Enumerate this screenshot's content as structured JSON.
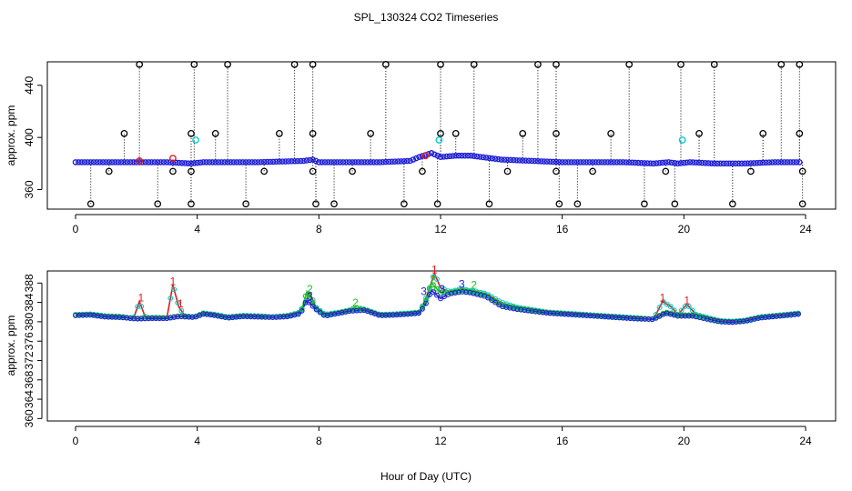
{
  "figure": {
    "title": "SPL_130324  CO2 Timeseries",
    "xlabel": "Hour of Day (UTC)"
  },
  "colors": {
    "outlier": "#000000",
    "main": "#1f1fd6",
    "series1": "#e31a1c",
    "series2": "#1fbf1f",
    "series3": "#1f1fd6",
    "cyan": "#00cccc"
  },
  "chart_data": [
    {
      "type": "scatter",
      "name": "top-panel",
      "ylabel": "approx. ppm",
      "xlim": [
        0,
        24
      ],
      "ylim": [
        345,
        458
      ],
      "xticks": [
        0,
        4,
        8,
        12,
        16,
        20,
        24
      ],
      "yticks": [
        360,
        400,
        440
      ],
      "main_series": [
        [
          0,
          381
        ],
        [
          1,
          381
        ],
        [
          2,
          381
        ],
        [
          3,
          381
        ],
        [
          3.8,
          380
        ],
        [
          4.2,
          381
        ],
        [
          6,
          381
        ],
        [
          7.5,
          382
        ],
        [
          7.8,
          383
        ],
        [
          8,
          381
        ],
        [
          9,
          381
        ],
        [
          10,
          381
        ],
        [
          11,
          382
        ],
        [
          11.3,
          385
        ],
        [
          11.7,
          388
        ],
        [
          12,
          385
        ],
        [
          12.5,
          386
        ],
        [
          13,
          386
        ],
        [
          14,
          383
        ],
        [
          15,
          382
        ],
        [
          16,
          381
        ],
        [
          17,
          381
        ],
        [
          18,
          381
        ],
        [
          19,
          380
        ],
        [
          19.5,
          381
        ],
        [
          19.8,
          380
        ],
        [
          20.2,
          381
        ],
        [
          21,
          380
        ],
        [
          22,
          380
        ],
        [
          23,
          381
        ],
        [
          23.8,
          381
        ]
      ],
      "outliers_high": [
        2.1,
        3.9,
        5.0,
        7.2,
        7.8,
        10.2,
        12.0,
        13.1,
        15.2,
        15.8,
        18.2,
        19.9,
        21.0,
        23.2,
        23.8
      ],
      "outliers_low": [
        0.5,
        2.7,
        3.8,
        5.6,
        7.9,
        8.5,
        10.8,
        11.9,
        13.6,
        15.9,
        16.5,
        18.7,
        19.7,
        21.6,
        23.9
      ],
      "outliers_mid": [
        1.6,
        3.8,
        4.6,
        6.7,
        7.8,
        9.7,
        12.0,
        12.5,
        14.7,
        15.8,
        17.6,
        20.5,
        22.6,
        23.8
      ],
      "outliers_near_low": [
        1.1,
        3.2,
        3.8,
        6.2,
        7.8,
        9.1,
        11.4,
        14.2,
        15.8,
        17.0,
        19.4,
        22.2,
        23.9
      ],
      "cyan_points": [
        [
          3.95,
          398
        ],
        [
          11.95,
          398
        ],
        [
          19.95,
          398
        ]
      ],
      "red_points": [
        [
          2.1,
          382
        ],
        [
          3.2,
          384
        ],
        [
          11.5,
          386
        ]
      ]
    },
    {
      "type": "line",
      "name": "bottom-panel",
      "ylabel": "approx. ppm",
      "xlim": [
        0,
        24
      ],
      "ylim": [
        359.5,
        390.5
      ],
      "xticks": [
        0,
        4,
        8,
        12,
        16,
        20,
        24
      ],
      "yticks": [
        360,
        364,
        368,
        372,
        376,
        380,
        384,
        388
      ],
      "series": [
        {
          "name": "1",
          "label": "1",
          "values": [
            [
              0,
              381.5
            ],
            [
              0.5,
              381.6
            ],
            [
              1,
              381.2
            ],
            [
              1.5,
              381.1
            ],
            [
              1.9,
              380.6
            ],
            [
              2.1,
              384.2
            ],
            [
              2.3,
              380.8
            ],
            [
              2.6,
              380.9
            ],
            [
              3.0,
              380.8
            ],
            [
              3.2,
              387.6
            ],
            [
              3.4,
              383.0
            ],
            [
              3.6,
              381.2
            ],
            [
              3.9,
              381.0
            ],
            [
              4.2,
              381.8
            ],
            [
              4.6,
              381.5
            ],
            [
              5.0,
              381.0
            ],
            [
              5.5,
              381.3
            ],
            [
              6.0,
              381.2
            ],
            [
              6.5,
              381.0
            ],
            [
              7.0,
              381.3
            ],
            [
              7.4,
              382.0
            ],
            [
              7.7,
              386.0
            ],
            [
              7.9,
              383.0
            ],
            [
              8.2,
              381.5
            ],
            [
              8.7,
              382.0
            ],
            [
              9.0,
              382.4
            ],
            [
              9.5,
              382.6
            ],
            [
              10.0,
              381.5
            ],
            [
              10.5,
              381.6
            ],
            [
              11.0,
              381.8
            ],
            [
              11.3,
              382.0
            ],
            [
              11.5,
              384.5
            ],
            [
              11.8,
              390.0
            ],
            [
              12.0,
              387.0
            ],
            [
              12.3,
              386.2
            ],
            [
              12.7,
              386.8
            ],
            [
              13.0,
              386.4
            ],
            [
              13.5,
              385.8
            ],
            [
              14.0,
              384.0
            ],
            [
              14.5,
              383.0
            ],
            [
              15.0,
              382.5
            ],
            [
              15.5,
              382.0
            ],
            [
              16.0,
              381.8
            ],
            [
              16.5,
              381.6
            ],
            [
              17.0,
              381.4
            ],
            [
              17.5,
              381.2
            ],
            [
              18.0,
              381.0
            ],
            [
              18.5,
              380.8
            ],
            [
              19.0,
              380.5
            ],
            [
              19.3,
              384.2
            ],
            [
              19.6,
              383.0
            ],
            [
              19.8,
              381.5
            ],
            [
              20.1,
              383.6
            ],
            [
              20.4,
              381.5
            ],
            [
              20.8,
              380.8
            ],
            [
              21.2,
              380.2
            ],
            [
              21.6,
              380.1
            ],
            [
              22.0,
              380.3
            ],
            [
              22.5,
              381.0
            ],
            [
              23.0,
              381.3
            ],
            [
              23.5,
              381.6
            ],
            [
              23.8,
              381.8
            ]
          ]
        },
        {
          "name": "2",
          "label": "2",
          "values": [
            [
              0,
              381.4
            ],
            [
              0.5,
              381.5
            ],
            [
              1,
              381.1
            ],
            [
              1.5,
              381.0
            ],
            [
              2.0,
              380.7
            ],
            [
              2.5,
              380.8
            ],
            [
              3.0,
              380.8
            ],
            [
              3.4,
              381.2
            ],
            [
              3.9,
              381.0
            ],
            [
              4.2,
              381.7
            ],
            [
              4.6,
              381.4
            ],
            [
              5.0,
              380.9
            ],
            [
              5.5,
              381.2
            ],
            [
              6.0,
              381.1
            ],
            [
              6.5,
              381.0
            ],
            [
              7.0,
              381.2
            ],
            [
              7.4,
              381.8
            ],
            [
              7.6,
              386.2
            ],
            [
              7.9,
              382.8
            ],
            [
              8.2,
              381.3
            ],
            [
              8.7,
              381.9
            ],
            [
              9.0,
              382.3
            ],
            [
              9.2,
              383.0
            ],
            [
              9.5,
              382.5
            ],
            [
              10.0,
              381.4
            ],
            [
              10.5,
              381.5
            ],
            [
              11.0,
              381.7
            ],
            [
              11.3,
              381.9
            ],
            [
              11.5,
              384.0
            ],
            [
              11.7,
              388.0
            ],
            [
              12.0,
              386.0
            ],
            [
              12.3,
              386.0
            ],
            [
              12.7,
              386.5
            ],
            [
              13.0,
              386.2
            ],
            [
              13.5,
              385.5
            ],
            [
              14.0,
              383.5
            ],
            [
              14.5,
              382.8
            ],
            [
              15.0,
              382.4
            ],
            [
              15.5,
              381.9
            ],
            [
              16.0,
              381.7
            ],
            [
              16.5,
              381.5
            ],
            [
              17.0,
              381.3
            ],
            [
              17.5,
              381.1
            ],
            [
              18.0,
              380.9
            ],
            [
              18.5,
              380.7
            ],
            [
              19.0,
              380.6
            ],
            [
              19.4,
              382.0
            ],
            [
              19.8,
              381.4
            ],
            [
              20.3,
              381.4
            ],
            [
              20.8,
              380.7
            ],
            [
              21.2,
              380.1
            ],
            [
              21.6,
              380.0
            ],
            [
              22.0,
              380.2
            ],
            [
              22.5,
              380.9
            ],
            [
              23.0,
              381.2
            ],
            [
              23.5,
              381.5
            ],
            [
              23.8,
              381.7
            ]
          ]
        },
        {
          "name": "3",
          "label": "3",
          "values": [
            [
              0,
              381.3
            ],
            [
              0.5,
              381.4
            ],
            [
              1,
              381.0
            ],
            [
              1.5,
              380.9
            ],
            [
              2.0,
              380.6
            ],
            [
              2.5,
              380.7
            ],
            [
              3.0,
              380.7
            ],
            [
              3.4,
              381.1
            ],
            [
              3.9,
              380.9
            ],
            [
              4.2,
              381.6
            ],
            [
              4.6,
              381.3
            ],
            [
              5.0,
              380.8
            ],
            [
              5.5,
              381.1
            ],
            [
              6.0,
              381.0
            ],
            [
              6.5,
              380.9
            ],
            [
              7.0,
              381.1
            ],
            [
              7.4,
              381.7
            ],
            [
              7.6,
              384.5
            ],
            [
              7.9,
              382.6
            ],
            [
              8.2,
              381.2
            ],
            [
              8.7,
              381.8
            ],
            [
              9.0,
              382.2
            ],
            [
              9.5,
              382.4
            ],
            [
              10.0,
              381.3
            ],
            [
              10.5,
              381.4
            ],
            [
              11.0,
              381.6
            ],
            [
              11.3,
              381.8
            ],
            [
              11.5,
              383.5
            ],
            [
              11.7,
              386.5
            ],
            [
              12.0,
              384.8
            ],
            [
              12.3,
              385.8
            ],
            [
              12.7,
              386.2
            ],
            [
              13.0,
              386.0
            ],
            [
              13.5,
              385.2
            ],
            [
              14.0,
              383.2
            ],
            [
              14.5,
              382.6
            ],
            [
              15.0,
              382.2
            ],
            [
              15.5,
              381.8
            ],
            [
              16.0,
              381.6
            ],
            [
              16.5,
              381.4
            ],
            [
              17.0,
              381.2
            ],
            [
              17.5,
              381.0
            ],
            [
              18.0,
              380.8
            ],
            [
              18.5,
              380.6
            ],
            [
              19.0,
              380.5
            ],
            [
              19.4,
              381.8
            ],
            [
              19.8,
              381.2
            ],
            [
              20.3,
              381.2
            ],
            [
              20.8,
              380.5
            ],
            [
              21.2,
              380.0
            ],
            [
              21.6,
              379.9
            ],
            [
              22.0,
              380.1
            ],
            [
              22.5,
              380.8
            ],
            [
              23.0,
              381.1
            ],
            [
              23.5,
              381.4
            ],
            [
              23.8,
              381.6
            ]
          ]
        }
      ],
      "number_labels": [
        [
          2.15,
          384.2,
          "1"
        ],
        [
          3.2,
          387.6,
          "1"
        ],
        [
          3.45,
          383.0,
          "1"
        ],
        [
          7.7,
          386.0,
          "2"
        ],
        [
          7.7,
          384.5,
          "3"
        ],
        [
          11.8,
          390.0,
          "1"
        ],
        [
          11.75,
          388.0,
          "2"
        ],
        [
          11.45,
          385.5,
          "3"
        ],
        [
          12.05,
          386.0,
          "3"
        ],
        [
          12.7,
          387.0,
          "3"
        ],
        [
          13.1,
          386.8,
          "2"
        ],
        [
          19.3,
          384.2,
          "1"
        ],
        [
          20.1,
          383.6,
          "1"
        ],
        [
          9.2,
          383.2,
          "2"
        ]
      ]
    }
  ]
}
